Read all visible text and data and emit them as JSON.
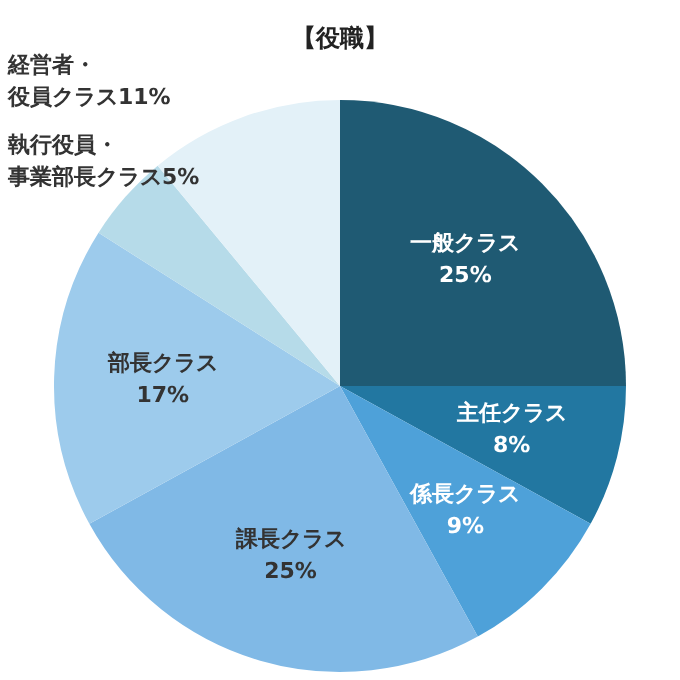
{
  "chart_data": {
    "type": "pie",
    "title": "【役職】",
    "categories": [
      "一般クラス",
      "主任クラス",
      "係長クラス",
      "課長クラス",
      "部長クラス",
      "執行役員・事業部長クラス",
      "経営者・役員クラス"
    ],
    "values": [
      25,
      8,
      9,
      25,
      17,
      5,
      11
    ],
    "colors": [
      "#1f5a73",
      "#2277a1",
      "#4ea1d9",
      "#80b9e6",
      "#9dcbec",
      "#b6dbe9",
      "#e3f1f8"
    ],
    "value_labels": [
      "25%",
      "8%",
      "9%",
      "25%",
      "17%",
      "5%",
      "11%"
    ],
    "legend": false
  }
}
